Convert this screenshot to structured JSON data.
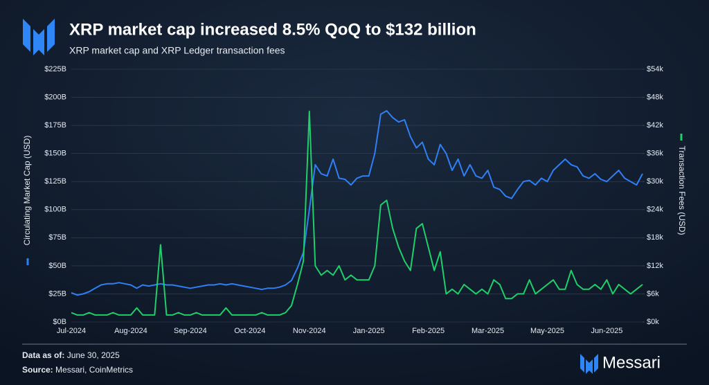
{
  "chart_data": {
    "type": "line",
    "title": "XRP market cap increased 8.5% QoQ to $132 billion",
    "subtitle": "XRP market cap and XRP Ledger transaction fees",
    "categories": [
      "Jul-2024",
      null,
      null,
      null,
      null,
      null,
      null,
      null,
      null,
      null,
      "Aug-2024",
      null,
      null,
      null,
      null,
      null,
      null,
      null,
      null,
      null,
      "Sep-2024",
      null,
      null,
      null,
      null,
      null,
      null,
      null,
      null,
      null,
      "Oct-2024",
      null,
      null,
      null,
      null,
      null,
      null,
      null,
      null,
      null,
      "Nov-2024",
      null,
      null,
      null,
      null,
      null,
      null,
      null,
      null,
      null,
      "Jan-2025",
      null,
      null,
      null,
      null,
      null,
      null,
      null,
      null,
      null,
      "Feb-2025",
      null,
      null,
      null,
      null,
      null,
      null,
      null,
      null,
      null,
      "Mar-2025",
      null,
      null,
      null,
      null,
      null,
      null,
      null,
      null,
      null,
      "May-2025",
      null,
      null,
      null,
      null,
      null,
      null,
      null,
      null,
      null,
      "Jun-2025",
      null,
      null,
      null,
      null,
      null,
      null
    ],
    "series": [
      {
        "name": "Circulating Market Cap (USD)",
        "color": "#2f80f5",
        "values": [
          26,
          24,
          25,
          27,
          30,
          33,
          34,
          34,
          35,
          34,
          33,
          30,
          33,
          32,
          33,
          34,
          33,
          33,
          32,
          31,
          30,
          31,
          32,
          33,
          33,
          34,
          33,
          34,
          33,
          32,
          31,
          30,
          29,
          30,
          30,
          31,
          33,
          37,
          48,
          62,
          100,
          140,
          132,
          130,
          145,
          128,
          127,
          122,
          128,
          130,
          130,
          150,
          185,
          188,
          182,
          178,
          180,
          165,
          155,
          160,
          145,
          140,
          158,
          150,
          135,
          145,
          130,
          140,
          130,
          128,
          135,
          120,
          118,
          112,
          110,
          118,
          125,
          126,
          122,
          128,
          125,
          135,
          140,
          145,
          140,
          138,
          130,
          128,
          132,
          127,
          125,
          130,
          135,
          128,
          125,
          122,
          132
        ]
      },
      {
        "name": "Transaction Fees (USD)",
        "color": "#1fd06a",
        "axis": "y2",
        "values": [
          2,
          1.5,
          1.5,
          2,
          1.5,
          1.5,
          1.5,
          2,
          1.5,
          1.5,
          1.5,
          3,
          1.5,
          1.5,
          1.5,
          16.5,
          1.5,
          1.5,
          2,
          1.5,
          1.5,
          2,
          1.5,
          1.5,
          1.5,
          1.5,
          3,
          1.5,
          1.5,
          1.5,
          1.5,
          1.5,
          2,
          1.5,
          1.5,
          1.5,
          2,
          3.5,
          8,
          13,
          45,
          12,
          10,
          11,
          10,
          12,
          9,
          10,
          9,
          9,
          9,
          12,
          25,
          26,
          20,
          16,
          13,
          11,
          20,
          21,
          16,
          11,
          15,
          6,
          7,
          6,
          8,
          7,
          6,
          7,
          6,
          9,
          8,
          5,
          5,
          6,
          6,
          9,
          6,
          7,
          8,
          9,
          7,
          7,
          11,
          8,
          7,
          7,
          8,
          7,
          9,
          6,
          8,
          7,
          6,
          7,
          8
        ]
      }
    ],
    "ylim": [
      0,
      225
    ],
    "yticks": [
      {
        "value": 0,
        "label": "$0B"
      },
      {
        "value": 25,
        "label": "$25B"
      },
      {
        "value": 50,
        "label": "$50B"
      },
      {
        "value": 75,
        "label": "$75B"
      },
      {
        "value": 100,
        "label": "$100B"
      },
      {
        "value": 125,
        "label": "$125B"
      },
      {
        "value": 150,
        "label": "$150B"
      },
      {
        "value": 175,
        "label": "$175B"
      },
      {
        "value": 200,
        "label": "$200B"
      },
      {
        "value": 225,
        "label": "$225B"
      }
    ],
    "y2lim": [
      0,
      54
    ],
    "y2ticks": [
      {
        "value": 0,
        "label": "$0k"
      },
      {
        "value": 6,
        "label": "$6k"
      },
      {
        "value": 12,
        "label": "$12k"
      },
      {
        "value": 18,
        "label": "$18k"
      },
      {
        "value": 24,
        "label": "$24k"
      },
      {
        "value": 30,
        "label": "$30k"
      },
      {
        "value": 36,
        "label": "$36k"
      },
      {
        "value": 42,
        "label": "$42k"
      },
      {
        "value": 48,
        "label": "$48k"
      },
      {
        "value": 54,
        "label": "$54k"
      }
    ],
    "grid": true
  },
  "footer": {
    "date_label": "Data as of:",
    "date": "June 30, 2025",
    "source_label": "Source:",
    "source": "Messari, CoinMetrics",
    "brand": "Messari"
  }
}
